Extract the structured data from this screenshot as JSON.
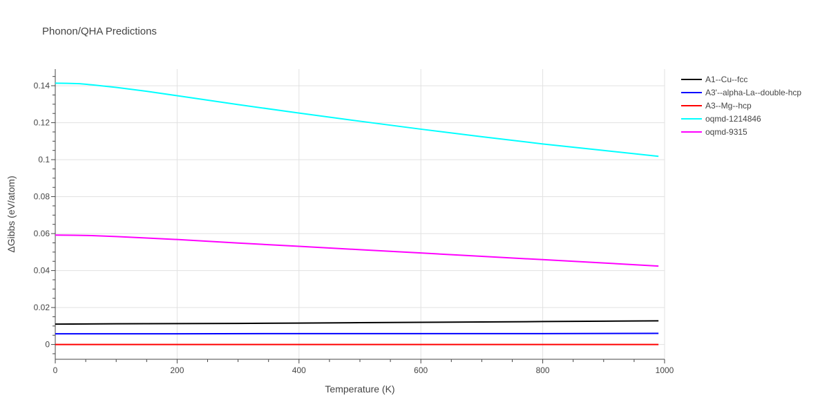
{
  "chart_data": {
    "type": "line",
    "title": "Phonon/QHA Predictions",
    "xlabel": "Temperature (K)",
    "ylabel": "ΔGibbs (eV/atom)",
    "xlim": [
      0,
      1000
    ],
    "ylim": [
      -0.008,
      0.149
    ],
    "x_ticks": [
      0,
      200,
      400,
      600,
      800,
      1000
    ],
    "x_tick_labels": [
      "0",
      "200",
      "400",
      "600",
      "800",
      "1000"
    ],
    "y_ticks": [
      0,
      0.02,
      0.04,
      0.06,
      0.08,
      0.1,
      0.12,
      0.14
    ],
    "y_tick_labels": [
      "0",
      "0.02",
      "0.04",
      "0.06",
      "0.08",
      "0.1",
      "0.12",
      "0.14"
    ],
    "grid": true,
    "legend_position": "top-right",
    "series": [
      {
        "name": "A1--Cu--fcc",
        "color": "#000000",
        "x": [
          0,
          100,
          200,
          300,
          400,
          500,
          600,
          700,
          800,
          900,
          990
        ],
        "y": [
          0.011,
          0.0112,
          0.0113,
          0.0114,
          0.0116,
          0.0118,
          0.012,
          0.0122,
          0.0124,
          0.0126,
          0.0128
        ]
      },
      {
        "name": "A3'--alpha-La--double-hcp",
        "color": "#0000ff",
        "x": [
          0,
          200,
          400,
          600,
          800,
          990
        ],
        "y": [
          0.0058,
          0.0058,
          0.0059,
          0.0059,
          0.0059,
          0.006
        ]
      },
      {
        "name": "A3--Mg--hcp",
        "color": "#ff0000",
        "x": [
          0,
          200,
          400,
          600,
          800,
          990
        ],
        "y": [
          0,
          0,
          0,
          0,
          0,
          0
        ]
      },
      {
        "name": "oqmd-1214846",
        "color": "#00ffff",
        "x": [
          0,
          20,
          40,
          60,
          80,
          100,
          150,
          200,
          300,
          400,
          500,
          600,
          700,
          800,
          900,
          990
        ],
        "y": [
          0.1414,
          0.1413,
          0.1411,
          0.1405,
          0.1398,
          0.1391,
          0.137,
          0.1346,
          0.1298,
          0.1252,
          0.1208,
          0.1165,
          0.1124,
          0.1085,
          0.105,
          0.1018
        ]
      },
      {
        "name": "oqmd-9315",
        "color": "#ff00ff",
        "x": [
          0,
          30,
          60,
          100,
          150,
          200,
          300,
          400,
          500,
          600,
          700,
          800,
          900,
          990
        ],
        "y": [
          0.0592,
          0.0591,
          0.0589,
          0.0584,
          0.0576,
          0.0568,
          0.0549,
          0.0531,
          0.0513,
          0.0495,
          0.0477,
          0.0459,
          0.0441,
          0.0424
        ]
      }
    ]
  }
}
